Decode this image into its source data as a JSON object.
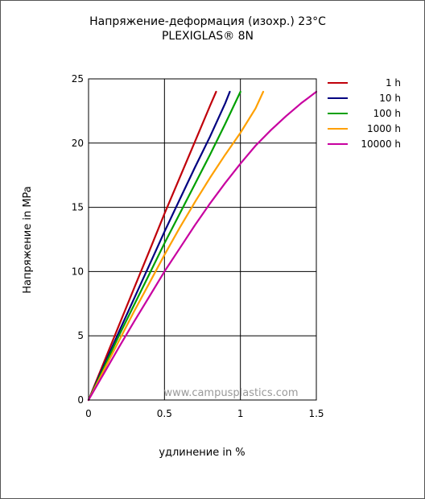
{
  "chart_data": {
    "type": "line",
    "title": "Напряжение-деформация (изохр.) 23°C",
    "subtitle": "PLEXIGLAS® 8N",
    "xlabel": "удлинение in %",
    "ylabel": "Напряжение in MPa",
    "xlim": [
      0,
      1.5
    ],
    "ylim": [
      0,
      25
    ],
    "xticks": [
      "0",
      "0.5",
      "1",
      "1.5"
    ],
    "yticks": [
      "0",
      "5",
      "10",
      "15",
      "20",
      "25"
    ],
    "grid": true,
    "legend_position": "right",
    "watermark": "www.campusplastics.com",
    "series": [
      {
        "name": "1 h",
        "color": "#c0000a",
        "x": [
          0,
          0.1,
          0.2,
          0.3,
          0.4,
          0.5,
          0.6,
          0.7,
          0.8,
          0.84
        ],
        "y": [
          0,
          2.9,
          5.8,
          8.7,
          11.6,
          14.5,
          17.3,
          20.1,
          22.9,
          24
        ]
      },
      {
        "name": "10 h",
        "color": "#000080",
        "x": [
          0,
          0.1,
          0.2,
          0.3,
          0.4,
          0.5,
          0.6,
          0.7,
          0.8,
          0.9,
          0.93
        ],
        "y": [
          0,
          2.65,
          5.3,
          7.9,
          10.5,
          13.1,
          15.6,
          18.1,
          20.5,
          23.1,
          24
        ]
      },
      {
        "name": "100 h",
        "color": "#00a000",
        "x": [
          0,
          0.1,
          0.2,
          0.3,
          0.4,
          0.5,
          0.6,
          0.7,
          0.8,
          0.9,
          1.0
        ],
        "y": [
          0,
          2.5,
          5.0,
          7.4,
          9.8,
          12.2,
          14.5,
          16.8,
          19.1,
          21.5,
          24
        ]
      },
      {
        "name": "1000 h",
        "color": "#ffa000",
        "x": [
          0,
          0.1,
          0.2,
          0.3,
          0.4,
          0.5,
          0.6,
          0.7,
          0.8,
          0.9,
          1.0,
          1.1,
          1.15
        ],
        "y": [
          0,
          2.3,
          4.6,
          6.9,
          9.1,
          11.3,
          13.4,
          15.4,
          17.3,
          19.1,
          20.8,
          22.7,
          24
        ]
      },
      {
        "name": "10000 h",
        "color": "#c800a0",
        "x": [
          0,
          0.1,
          0.2,
          0.3,
          0.4,
          0.5,
          0.6,
          0.7,
          0.8,
          0.9,
          1.0,
          1.1,
          1.2,
          1.3,
          1.4,
          1.5
        ],
        "y": [
          0,
          2.05,
          4.1,
          6.1,
          8.05,
          10.0,
          11.8,
          13.6,
          15.3,
          16.9,
          18.4,
          19.8,
          21.0,
          22.1,
          23.1,
          24
        ]
      }
    ]
  }
}
